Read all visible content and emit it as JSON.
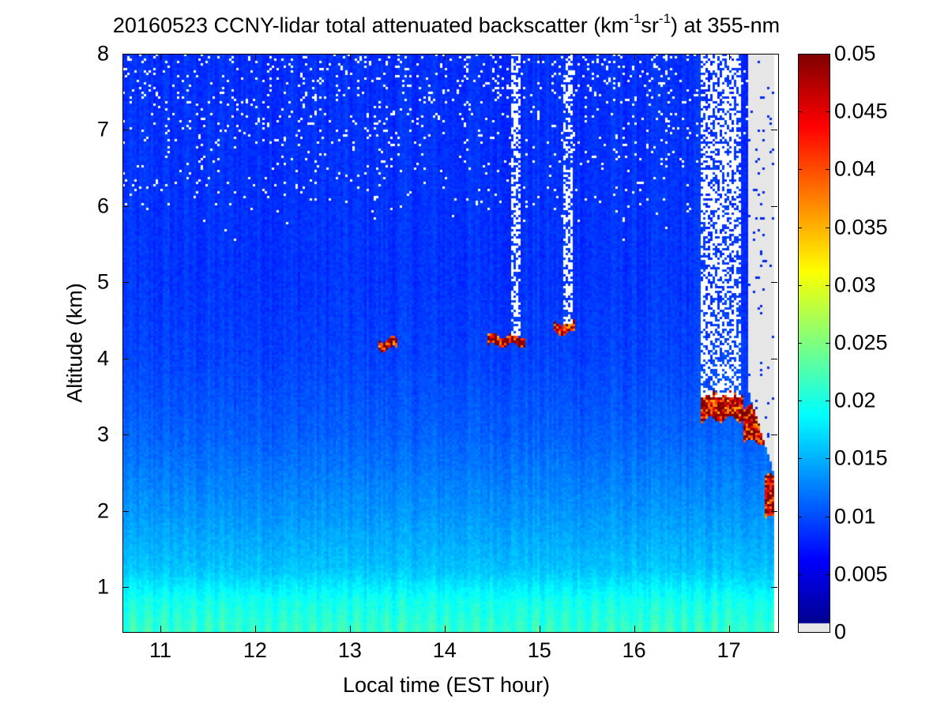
{
  "chart_data": {
    "type": "heatmap",
    "title_parts": {
      "prefix": "20160523 CCNY-lidar total attenuated backscatter (km",
      "exp1": "-1",
      "mid": "sr",
      "exp2": "-1",
      "suffix": ") at 355-nm"
    },
    "xlabel": "Local time (EST hour)",
    "ylabel": "Altitude (km)",
    "xlim": [
      10.6,
      17.52
    ],
    "ylim": [
      0.41,
      8
    ],
    "xticks": [
      "11",
      "12",
      "13",
      "14",
      "15",
      "16",
      "17"
    ],
    "yticks": [
      "1",
      "2",
      "3",
      "4",
      "5",
      "6",
      "7",
      "8"
    ],
    "colorbar": {
      "range": [
        0,
        0.05
      ],
      "ticks": [
        "0",
        "0.005",
        "0.01",
        "0.015",
        "0.02",
        "0.025",
        "0.03",
        "0.035",
        "0.04",
        "0.045",
        "0.05"
      ],
      "colormap": "jet",
      "low_color": "#e6e6e6"
    },
    "data_end_time": 17.47,
    "background_profile": {
      "altitude_km": [
        0.41,
        0.8,
        1.2,
        2.0,
        3.0,
        4.0,
        5.0,
        8.0
      ],
      "backscatter": [
        0.02,
        0.019,
        0.016,
        0.0135,
        0.011,
        0.0095,
        0.0088,
        0.0085
      ]
    },
    "cloud_layers": [
      {
        "t0": 13.3,
        "t1": 13.5,
        "z0": 4.12,
        "z1": 4.25,
        "value": 0.05
      },
      {
        "t0": 14.45,
        "t1": 14.85,
        "z0": 4.17,
        "z1": 4.3,
        "value": 0.05
      },
      {
        "t0": 15.15,
        "t1": 15.38,
        "z0": 4.33,
        "z1": 4.47,
        "value": 0.05
      },
      {
        "t0": 16.7,
        "t1": 17.15,
        "z0": 3.2,
        "z1": 3.55,
        "value": 0.05
      },
      {
        "t0": 17.15,
        "t1": 17.4,
        "z0": 2.9,
        "z1": 3.35,
        "value": 0.05
      },
      {
        "t0": 17.38,
        "t1": 17.47,
        "z0": 1.9,
        "z1": 2.45,
        "value": 0.05
      }
    ],
    "signal_loss_columns": [
      {
        "t0": 14.7,
        "t1": 14.8,
        "z_above": 4.3
      },
      {
        "t0": 15.25,
        "t1": 15.35,
        "z_above": 4.45
      },
      {
        "t0": 16.7,
        "t1": 17.12,
        "z_above": 3.5
      }
    ]
  }
}
